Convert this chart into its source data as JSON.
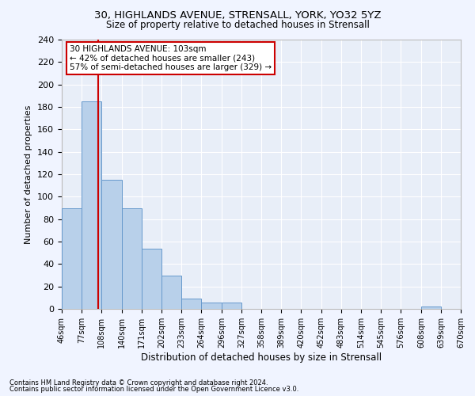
{
  "title_line1": "30, HIGHLANDS AVENUE, STRENSALL, YORK, YO32 5YZ",
  "title_line2": "Size of property relative to detached houses in Strensall",
  "xlabel": "Distribution of detached houses by size in Strensall",
  "ylabel": "Number of detached properties",
  "bar_color": "#b8d0ea",
  "bar_edge_color": "#6699cc",
  "background_color": "#e8eef8",
  "grid_color": "#ffffff",
  "vline_color": "#cc0000",
  "vline_x": 103,
  "annotation_text": "30 HIGHLANDS AVENUE: 103sqm\n← 42% of detached houses are smaller (243)\n57% of semi-detached houses are larger (329) →",
  "annotation_box_color": "#ffffff",
  "annotation_box_edge": "#cc0000",
  "bin_edges": [
    46,
    77,
    108,
    140,
    171,
    202,
    233,
    264,
    296,
    327,
    358,
    389,
    420,
    452,
    483,
    514,
    545,
    576,
    608,
    639,
    670
  ],
  "bar_heights": [
    90,
    185,
    115,
    90,
    54,
    30,
    9,
    6,
    6,
    0,
    0,
    0,
    0,
    0,
    0,
    0,
    0,
    0,
    2,
    0
  ],
  "ylim": [
    0,
    240
  ],
  "yticks": [
    0,
    20,
    40,
    60,
    80,
    100,
    120,
    140,
    160,
    180,
    200,
    220,
    240
  ],
  "footnote1": "Contains HM Land Registry data © Crown copyright and database right 2024.",
  "footnote2": "Contains public sector information licensed under the Open Government Licence v3.0.",
  "fig_bg": "#f0f4ff"
}
